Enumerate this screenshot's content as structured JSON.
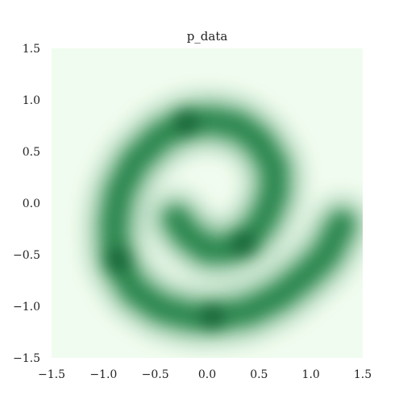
{
  "chart_data": {
    "type": "heatmap",
    "title": "p_data",
    "xlabel": "",
    "ylabel": "",
    "xlim": [
      -1.5,
      1.5
    ],
    "ylim": [
      -1.5,
      1.5
    ],
    "x_ticks": [
      "−1.5",
      "−1.0",
      "−0.5",
      "0.0",
      "0.5",
      "1.0",
      "1.5"
    ],
    "y_ticks": [
      "1.5",
      "1.0",
      "0.5",
      "0.0",
      "−0.5",
      "−1.0",
      "−1.5"
    ],
    "x_tick_values": [
      -1.5,
      -1.0,
      -0.5,
      0.0,
      0.5,
      1.0,
      1.5
    ],
    "y_tick_values": [
      1.5,
      1.0,
      0.5,
      0.0,
      -0.5,
      -1.0,
      -1.5
    ],
    "grid": false,
    "colormap": "Greens",
    "background_color": "#f0fcef",
    "density_color": "#006d2c",
    "spiral_path": [
      [
        -0.3,
        -0.15
      ],
      [
        -0.2,
        -0.3
      ],
      [
        0.0,
        -0.45
      ],
      [
        0.2,
        -0.45
      ],
      [
        0.4,
        -0.35
      ],
      [
        0.55,
        -0.15
      ],
      [
        0.65,
        0.1
      ],
      [
        0.65,
        0.35
      ],
      [
        0.5,
        0.6
      ],
      [
        0.3,
        0.75
      ],
      [
        0.05,
        0.8
      ],
      [
        -0.2,
        0.78
      ],
      [
        -0.45,
        0.65
      ],
      [
        -0.7,
        0.4
      ],
      [
        -0.85,
        0.1
      ],
      [
        -0.9,
        -0.2
      ],
      [
        -0.88,
        -0.55
      ],
      [
        -0.7,
        -0.85
      ],
      [
        -0.45,
        -1.02
      ],
      [
        -0.15,
        -1.1
      ],
      [
        0.1,
        -1.1
      ],
      [
        0.4,
        -1.05
      ],
      [
        0.7,
        -0.9
      ],
      [
        0.95,
        -0.7
      ],
      [
        1.15,
        -0.5
      ],
      [
        1.3,
        -0.2
      ]
    ],
    "density_peaks": [
      {
        "x": -0.2,
        "y": 0.78
      },
      {
        "x": 0.35,
        "y": -0.4
      },
      {
        "x": -0.85,
        "y": -0.55
      },
      {
        "x": 0.05,
        "y": -1.1
      }
    ]
  }
}
